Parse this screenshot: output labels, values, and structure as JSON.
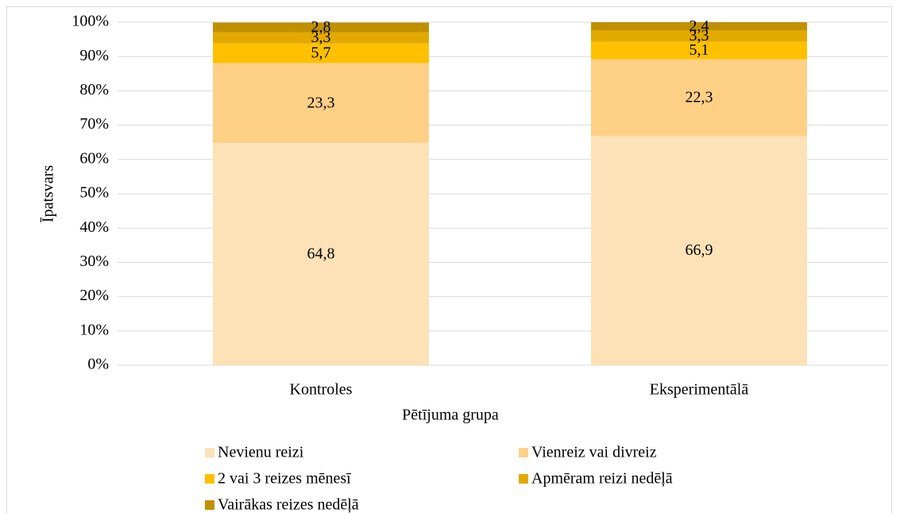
{
  "chart_data": {
    "type": "stacked_bar",
    "xlabel": "Pētījuma grupa",
    "ylabel": "Īpatsvars",
    "categories": [
      "Kontroles",
      "Eksperimentālā"
    ],
    "series": [
      {
        "name": "Nevienu reizi",
        "color": "#fde1b7",
        "values": [
          64.8,
          66.9
        ],
        "value_labels": [
          "64,8",
          "66,9"
        ]
      },
      {
        "name": "Vienreiz vai divreiz",
        "color": "#fed086",
        "values": [
          23.3,
          22.3
        ],
        "value_labels": [
          "23,3",
          "22,3"
        ]
      },
      {
        "name": "2 vai 3 reizes mēnesī",
        "color": "#ffc000",
        "values": [
          5.7,
          5.1
        ],
        "value_labels": [
          "5,7",
          "5,1"
        ]
      },
      {
        "name": "Apmēram reizi nedēļā",
        "color": "#e2aa00",
        "values": [
          3.3,
          3.3
        ],
        "value_labels": [
          "3,3",
          "3,3"
        ]
      },
      {
        "name": "Vairākas reizes nedēļā",
        "color": "#c09000",
        "values": [
          2.8,
          2.4
        ],
        "value_labels": [
          "2,8",
          "2,4"
        ]
      }
    ],
    "ylim": [
      0,
      100
    ],
    "yticks": [
      {
        "value": 0,
        "label": "0%"
      },
      {
        "value": 10,
        "label": "10%"
      },
      {
        "value": 20,
        "label": "20%"
      },
      {
        "value": 30,
        "label": "30%"
      },
      {
        "value": 40,
        "label": "40%"
      },
      {
        "value": 50,
        "label": "50%"
      },
      {
        "value": 60,
        "label": "60%"
      },
      {
        "value": 70,
        "label": "70%"
      },
      {
        "value": 80,
        "label": "80%"
      },
      {
        "value": 90,
        "label": "90%"
      },
      {
        "value": 100,
        "label": "100%"
      }
    ],
    "grid": true,
    "legend": "bottom"
  }
}
